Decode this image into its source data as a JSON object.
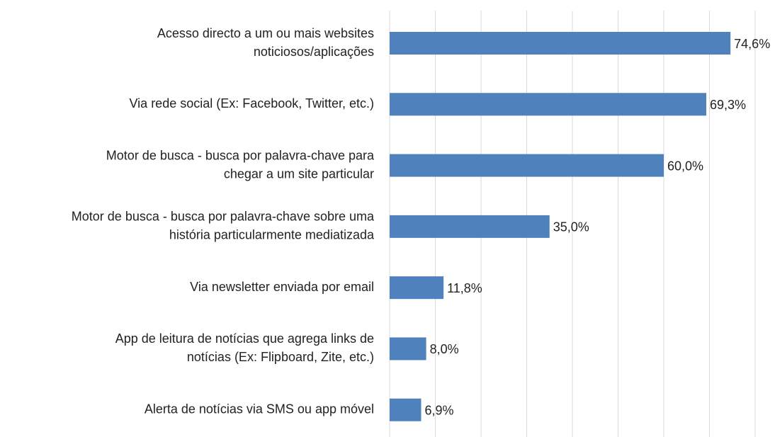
{
  "chart_data": {
    "type": "bar",
    "orientation": "horizontal",
    "categories": [
      [
        "Acesso directo a um ou mais websites",
        "noticiosos/aplicações"
      ],
      [
        "Via rede social (Ex: Facebook, Twitter, etc.)"
      ],
      [
        "Motor de busca - busca por palavra-chave para",
        "chegar a um site particular"
      ],
      [
        "Motor de busca - busca por palavra-chave sobre uma",
        "história particularmente mediatizada"
      ],
      [
        "Via newsletter enviada por email"
      ],
      [
        "App de leitura de notícias que agrega links de",
        "notícias (Ex: Flipboard, Zite, etc.)"
      ],
      [
        "Alerta de notícias via SMS ou app móvel"
      ]
    ],
    "values": [
      74.6,
      69.3,
      60.0,
      35.0,
      11.8,
      8.0,
      6.9
    ],
    "value_labels": [
      "74,6%",
      "69,3%",
      "60,0%",
      "35,0%",
      "11,8%",
      "8,0%",
      "6,9%"
    ],
    "color": "#4f81bd",
    "xlim": [
      0,
      80
    ],
    "xticks": [
      0,
      10,
      20,
      30,
      40,
      50,
      60,
      70,
      80
    ],
    "grid": true
  }
}
